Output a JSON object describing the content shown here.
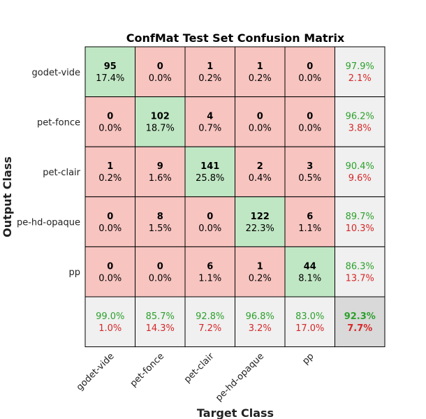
{
  "chart_data": {
    "type": "heatmap",
    "title": "ConfMat Test Set Confusion Matrix",
    "xlabel": "Target Class",
    "ylabel": "Output Class",
    "x_categories": [
      "godet-vide",
      "pet-fonce",
      "pet-clair",
      "pe-hd-opaque",
      "pp"
    ],
    "y_categories": [
      "godet-vide",
      "pet-fonce",
      "pet-clair",
      "pe-hd-opaque",
      "pp"
    ],
    "counts": [
      [
        95,
        0,
        1,
        1,
        0
      ],
      [
        0,
        102,
        4,
        0,
        0
      ],
      [
        1,
        9,
        141,
        2,
        3
      ],
      [
        0,
        8,
        0,
        122,
        6
      ],
      [
        0,
        0,
        6,
        1,
        44
      ]
    ],
    "percent_labels": [
      [
        "17.4%",
        "0.0%",
        "0.2%",
        "0.2%",
        "0.0%"
      ],
      [
        "0.0%",
        "18.7%",
        "0.7%",
        "0.0%",
        "0.0%"
      ],
      [
        "0.2%",
        "1.6%",
        "25.8%",
        "0.4%",
        "0.5%"
      ],
      [
        "0.0%",
        "1.5%",
        "0.0%",
        "22.3%",
        "1.1%"
      ],
      [
        "0.0%",
        "0.0%",
        "1.1%",
        "0.2%",
        "8.1%"
      ]
    ],
    "row_summary": [
      {
        "correct": "97.9%",
        "error": "2.1%"
      },
      {
        "correct": "96.2%",
        "error": "3.8%"
      },
      {
        "correct": "90.4%",
        "error": "9.6%"
      },
      {
        "correct": "89.7%",
        "error": "10.3%"
      },
      {
        "correct": "86.3%",
        "error": "13.7%"
      }
    ],
    "col_summary": [
      {
        "correct": "99.0%",
        "error": "1.0%"
      },
      {
        "correct": "85.7%",
        "error": "14.3%"
      },
      {
        "correct": "92.8%",
        "error": "7.2%"
      },
      {
        "correct": "96.8%",
        "error": "3.2%"
      },
      {
        "correct": "83.0%",
        "error": "17.0%"
      }
    ],
    "overall": {
      "correct": "92.3%",
      "error": "7.7%"
    },
    "colors": {
      "diagonal": "#c0e7c4",
      "off_diagonal": "#f7c4c0",
      "summary": "#f0f0f0",
      "overall": "#d9d9d9",
      "correct_text": "#2ca02c",
      "error_text": "#d62728"
    }
  }
}
